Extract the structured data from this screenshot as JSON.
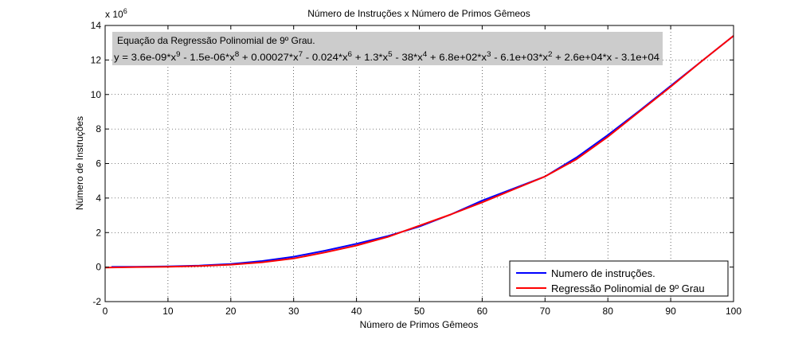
{
  "chart_data": {
    "type": "line",
    "title": "Número de Instruções x Número de Primos Gêmeos",
    "xlabel": "Número de Primos Gêmeos",
    "ylabel": "Número de Instruções",
    "y_exponent_label": "x 10",
    "y_exponent_power": "6",
    "xlim": [
      0,
      100
    ],
    "ylim": [
      -2,
      14
    ],
    "xticks": [
      0,
      10,
      20,
      30,
      40,
      50,
      60,
      70,
      80,
      90,
      100
    ],
    "yticks": [
      -2,
      0,
      2,
      4,
      6,
      8,
      10,
      12,
      14
    ],
    "grid": true,
    "legend_position": "bottom-right",
    "annotation": {
      "line1": "Equação da Regressão Polinomial de 9º Grau.",
      "line2_parts": [
        {
          "t": "y = 3.6e-09*x"
        },
        {
          "sup": "9"
        },
        {
          "t": " - 1.5e-06*x"
        },
        {
          "sup": "8"
        },
        {
          "t": " + 0.00027*x"
        },
        {
          "sup": "7"
        },
        {
          "t": " - 0.024*x"
        },
        {
          "sup": "6"
        },
        {
          "t": " + 1.3*x"
        },
        {
          "sup": "5"
        },
        {
          "t": " - 38*x"
        },
        {
          "sup": "4"
        },
        {
          "t": " + 6.8e+02*x"
        },
        {
          "sup": "3"
        },
        {
          "t": " - 6.1e+03*x"
        },
        {
          "sup": "2"
        },
        {
          "t": " + 2.6e+04*x - 3.1e+04"
        }
      ]
    },
    "series": [
      {
        "name": "Numero de instruções.",
        "color": "#0000ff",
        "x": [
          1,
          5,
          10,
          15,
          20,
          25,
          30,
          35,
          40,
          45,
          50,
          55,
          60,
          65,
          70,
          75,
          80,
          85,
          90,
          95,
          100
        ],
        "y": [
          0.01,
          0.02,
          0.04,
          0.09,
          0.18,
          0.35,
          0.6,
          0.95,
          1.35,
          1.8,
          2.35,
          3.05,
          3.85,
          4.55,
          5.25,
          6.35,
          7.65,
          9.05,
          10.5,
          11.95,
          13.4
        ]
      },
      {
        "name": "Regressão Polinomial de 9º Grau",
        "color": "#ff0000",
        "x": [
          0,
          5,
          10,
          15,
          20,
          25,
          30,
          35,
          40,
          45,
          50,
          55,
          60,
          65,
          70,
          75,
          80,
          85,
          90,
          95,
          100
        ],
        "y": [
          -0.03,
          0.0,
          0.02,
          0.06,
          0.14,
          0.28,
          0.5,
          0.85,
          1.25,
          1.75,
          2.4,
          3.05,
          3.75,
          4.5,
          5.25,
          6.25,
          7.55,
          9.0,
          10.45,
          11.95,
          13.4
        ]
      }
    ]
  }
}
